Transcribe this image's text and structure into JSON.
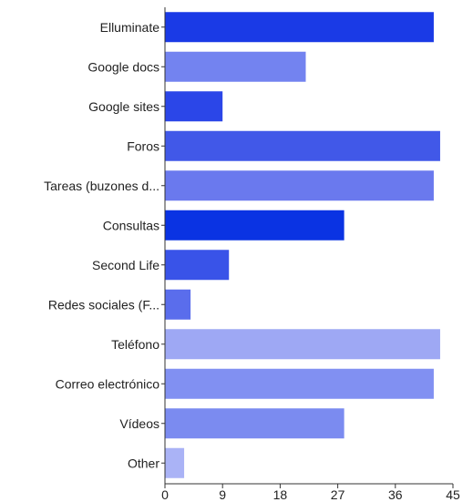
{
  "chart_data": {
    "type": "bar",
    "orientation": "horizontal",
    "title": "",
    "xlabel": "",
    "ylabel": "",
    "categories": [
      "Elluminate",
      "Google docs",
      "Google sites",
      "Foros",
      "Tareas (buzones d...",
      "Consultas",
      "Second Life",
      "Redes sociales (F...",
      "Teléfono",
      "Correo electrónico",
      "Vídeos",
      "Other"
    ],
    "values": [
      42,
      22,
      9,
      43,
      42,
      28,
      10,
      4,
      43,
      42,
      28,
      3
    ],
    "colors": [
      "#1a3ae6",
      "#7383f0",
      "#2b46e8",
      "#4158e8",
      "#6a79ee",
      "#0a33e3",
      "#3953e8",
      "#5a6dec",
      "#9ea8f4",
      "#8190f2",
      "#7b8bf0",
      "#aab3f6"
    ],
    "xlim": [
      0,
      45
    ],
    "xticks": [
      0,
      9,
      18,
      27,
      36,
      45
    ],
    "grid": false,
    "legend": "none"
  }
}
